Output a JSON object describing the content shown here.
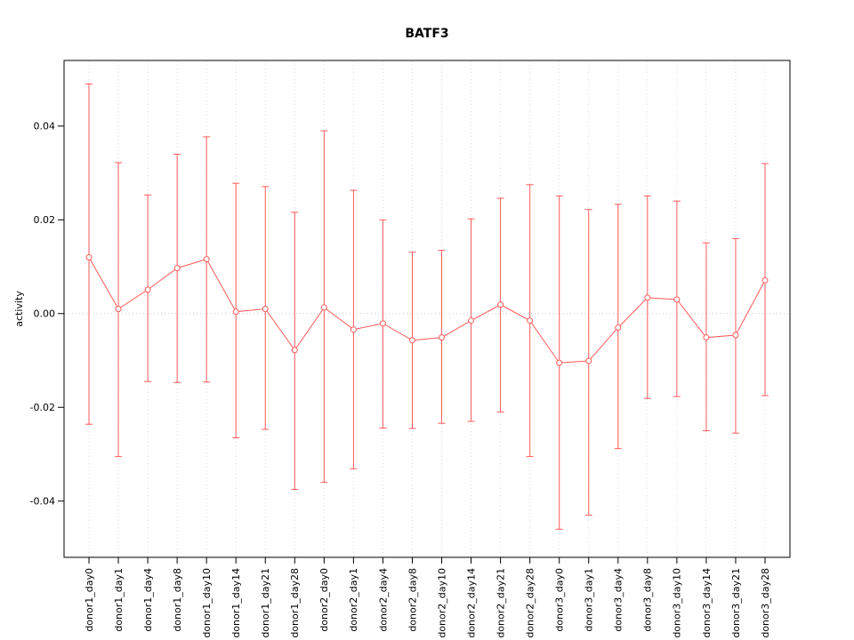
{
  "chart_data": {
    "type": "line",
    "title": "BATF3",
    "xlabel": "",
    "ylabel": "activity",
    "legend": "none",
    "grid": "dotted vertical gridlines per category plus dotted zero line",
    "ylim": [
      -0.052,
      0.054
    ],
    "yticks": [
      -0.04,
      -0.02,
      0.0,
      0.02,
      0.04
    ],
    "categories": [
      "donor1_day0",
      "donor1_day1",
      "donor1_day4",
      "donor1_day8",
      "donor1_day10",
      "donor1_day14",
      "donor1_day21",
      "donor1_day28",
      "donor2_day0",
      "donor2_day1",
      "donor2_day4",
      "donor2_day8",
      "donor2_day10",
      "donor2_day14",
      "donor2_day21",
      "donor2_day28",
      "donor3_day0",
      "donor3_day1",
      "donor3_day4",
      "donor3_day8",
      "donor3_day10",
      "donor3_day14",
      "donor3_day21",
      "donor3_day28"
    ],
    "series": [
      {
        "name": "activity",
        "marker": "open-circle",
        "values": [
          0.012,
          0.001,
          0.0051,
          0.0097,
          0.0116,
          0.0004,
          0.001,
          -0.0078,
          0.0013,
          -0.0034,
          -0.0021,
          -0.0057,
          -0.0051,
          -0.0015,
          0.0019,
          -0.0015,
          -0.0105,
          -0.0101,
          -0.003,
          0.0034,
          0.003,
          -0.0051,
          -0.0046,
          0.0071
        ],
        "upper": [
          0.049,
          0.0322,
          0.0253,
          0.034,
          0.0377,
          0.0278,
          0.0271,
          0.0216,
          0.039,
          0.0263,
          0.02,
          0.0131,
          0.0135,
          0.0202,
          0.0246,
          0.0275,
          0.0251,
          0.0222,
          0.0233,
          0.0251,
          0.024,
          0.0151,
          0.016,
          0.032
        ],
        "lower": [
          -0.0236,
          -0.0305,
          -0.0145,
          -0.0147,
          -0.0146,
          -0.0265,
          -0.0247,
          -0.0375,
          -0.036,
          -0.0331,
          -0.0244,
          -0.0245,
          -0.0234,
          -0.023,
          -0.021,
          -0.0305,
          -0.046,
          -0.043,
          -0.0288,
          -0.0181,
          -0.0177,
          -0.025,
          -0.0255,
          -0.0175
        ]
      }
    ],
    "colors": {
      "series": "#ff5a5a",
      "grid": "#dcdcdc",
      "zero_line": "#c8c8c8",
      "axis": "#000000",
      "background": "#ffffff"
    }
  }
}
